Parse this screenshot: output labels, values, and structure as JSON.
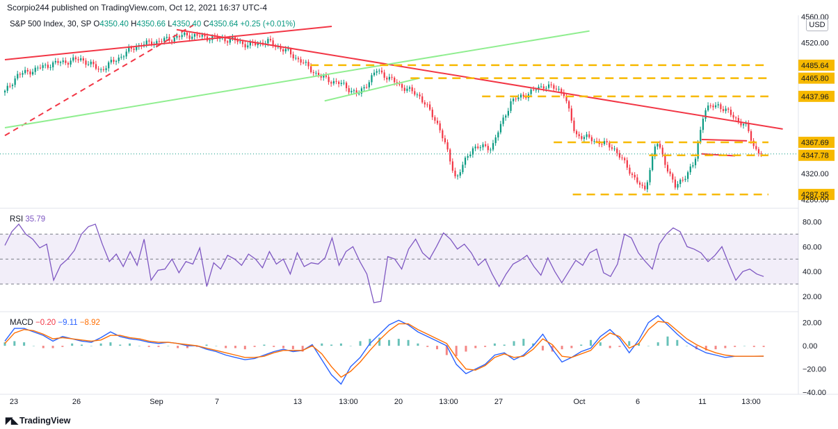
{
  "header": {
    "published": "Scorpio244 published on TradingView.com, Oct 12, 2021 16:37 UTC-4",
    "symbol": "S&P 500 Index, 30, SP",
    "open_label": "O",
    "open": "4350.40",
    "high_label": "H",
    "high": "4350.66",
    "low_label": "L",
    "low": "4350.40",
    "close_label": "C",
    "close": "4350.64",
    "change": "+0.25 (+0.01%)"
  },
  "currency_button": "USD",
  "logo_text": "TradingView",
  "colors": {
    "up": "#089981",
    "down": "#f23645",
    "trend": "#f23645",
    "channel": "#90ee90",
    "level": "#f7b900",
    "rsi": "#7e57c2",
    "macd": "#2962ff",
    "signal": "#ff6d00"
  },
  "chart_data": [
    {
      "type": "candlestick",
      "panel": "price",
      "ylim": [
        4270,
        4562
      ],
      "y_ticks": [
        "4520.00",
        "4320.00"
      ],
      "partial_ticks": [
        "4560.00",
        "4280.00"
      ],
      "last_price_label": "4347.78",
      "x_ticks": [
        "23",
        "26",
        "Sep",
        "7",
        "13",
        "13:00",
        "20",
        "13:00",
        "27",
        "Oct",
        "6",
        "11",
        "13:00"
      ],
      "ohlc": [],
      "horizontal_levels": [
        {
          "value": 4485.64,
          "label": "4485.64",
          "from": 12.8,
          "to": 32
        },
        {
          "value": 4465.8,
          "label": "4465.80",
          "from": 17,
          "to": 32
        },
        {
          "value": 4437.96,
          "label": "4437.96",
          "from": 20,
          "to": 32
        },
        {
          "value": 4367.69,
          "label": "4367.69",
          "from": 23,
          "to": 32
        },
        {
          "value": 4347.78,
          "label": "4347.78",
          "from": 27,
          "to": 32
        },
        {
          "value": 4287.95,
          "label": "4287.95",
          "from": 23.8,
          "to": 32
        }
      ],
      "trendlines": [
        {
          "style": "solid",
          "color": "trend",
          "points": [
            [
              0,
              4494
            ],
            [
              13.7,
              4545
            ]
          ]
        },
        {
          "style": "solid",
          "color": "trend",
          "points": [
            [
              7.2,
              4540
            ],
            [
              32.6,
              4388
            ]
          ]
        },
        {
          "style": "dashed",
          "color": "trend",
          "points": [
            [
              0,
              4378
            ],
            [
              7.9,
              4547
            ]
          ]
        },
        {
          "style": "solid",
          "color": "channel",
          "points": [
            [
              0,
              4390
            ],
            [
              24.5,
              4538
            ]
          ]
        },
        {
          "style": "solid",
          "color": "channel",
          "points": [
            [
              13.4,
              4431
            ],
            [
              17.4,
              4466
            ]
          ]
        },
        {
          "style": "solid",
          "color": "trend",
          "points": [
            [
              29.2,
              4372
            ],
            [
              31.1,
              4370
            ]
          ]
        },
        {
          "style": "solid",
          "color": "trend",
          "points": [
            [
              29.2,
              4350
            ],
            [
              30.6,
              4347
            ]
          ]
        }
      ]
    },
    {
      "type": "line",
      "panel": "rsi",
      "title": "RSI",
      "last_value": "35.79",
      "ylim": [
        10,
        88
      ],
      "y_ticks": [
        "80.00",
        "60.00",
        "40.00",
        "20.00"
      ],
      "band": [
        30,
        70
      ],
      "midline": 50,
      "series": [
        {
          "name": "RSI",
          "color": "rsi",
          "values": [
            61,
            72,
            78,
            70,
            66,
            59,
            62,
            33,
            45,
            50,
            57,
            70,
            76,
            78,
            62,
            48,
            54,
            44,
            56,
            45,
            66,
            33,
            41,
            42,
            50,
            39,
            48,
            46,
            59,
            28,
            47,
            42,
            53,
            50,
            45,
            54,
            50,
            43,
            56,
            46,
            50,
            38,
            55,
            44,
            47,
            46,
            51,
            67,
            45,
            56,
            60,
            48,
            38,
            15,
            16,
            52,
            50,
            42,
            58,
            66,
            55,
            50,
            60,
            71,
            66,
            58,
            62,
            55,
            45,
            50,
            38,
            28,
            38,
            46,
            49,
            53,
            44,
            37,
            51,
            40,
            31,
            40,
            49,
            45,
            55,
            58,
            39,
            36,
            46,
            70,
            67,
            55,
            48,
            42,
            62,
            70,
            75,
            72,
            60,
            58,
            55,
            48,
            53,
            60,
            46,
            33,
            40,
            42,
            38,
            36
          ]
        }
      ]
    },
    {
      "type": "line",
      "panel": "macd",
      "title": "MACD",
      "values_text": [
        "−0.20",
        "−9.11",
        "−8.92"
      ],
      "ylim": [
        -40,
        27
      ],
      "y_ticks": [
        "20.00",
        "0.00",
        "−20.00",
        "−40.00"
      ],
      "series": [
        {
          "name": "histogram",
          "color": "up",
          "values": [
            3,
            4,
            3,
            0,
            -2,
            -2,
            -1,
            2,
            1,
            0,
            2,
            3,
            1,
            2,
            0,
            -1,
            -1,
            0,
            -2,
            -2,
            -1,
            1,
            0,
            -2,
            -2,
            -3,
            -1,
            1,
            -1,
            -2,
            -3,
            -5,
            -1,
            2,
            1,
            2,
            0,
            4,
            6,
            7,
            5,
            6,
            5,
            2,
            -1,
            -3,
            -8,
            -9,
            -5,
            -2,
            -1,
            2,
            1,
            4,
            6,
            2,
            -4,
            -5,
            -3,
            -2,
            1,
            5,
            3,
            -2,
            -1,
            4,
            2,
            0,
            3,
            8,
            5,
            0,
            -3,
            -4,
            -3,
            -2,
            -1,
            0,
            -1,
            -1
          ]
        },
        {
          "name": "MACD",
          "color": "macd",
          "values": [
            4,
            15,
            15,
            12,
            9,
            4,
            8,
            6,
            4,
            3,
            7,
            12,
            8,
            6,
            5,
            3,
            2,
            3,
            2,
            0,
            0,
            -3,
            -5,
            -8,
            -10,
            -12,
            -11,
            -8,
            -5,
            -3,
            -5,
            -4,
            1,
            -12,
            -25,
            -33,
            -18,
            -10,
            2,
            10,
            18,
            22,
            18,
            12,
            8,
            4,
            0,
            -16,
            -24,
            -20,
            -16,
            -8,
            -6,
            -12,
            -8,
            0,
            10,
            -3,
            -14,
            -10,
            -5,
            -2,
            8,
            14,
            6,
            -6,
            5,
            20,
            26,
            18,
            10,
            3,
            -2,
            -6,
            -8,
            -10,
            -9,
            -9,
            -9,
            -9
          ]
        },
        {
          "name": "signal",
          "color": "signal",
          "values": [
            2,
            11,
            14,
            13,
            10,
            6,
            7,
            6,
            5,
            4,
            5,
            9,
            9,
            7,
            6,
            4,
            3,
            3,
            2,
            1,
            0,
            -2,
            -4,
            -6,
            -8,
            -10,
            -10,
            -9,
            -6,
            -4,
            -4,
            -4,
            0,
            -7,
            -18,
            -27,
            -22,
            -14,
            -4,
            5,
            13,
            19,
            19,
            14,
            10,
            6,
            2,
            -10,
            -20,
            -21,
            -17,
            -10,
            -7,
            -10,
            -9,
            -3,
            6,
            1,
            -9,
            -10,
            -7,
            -4,
            5,
            11,
            8,
            -2,
            2,
            14,
            21,
            20,
            13,
            6,
            1,
            -3,
            -6,
            -8,
            -9,
            -9,
            -9,
            -8.92
          ]
        }
      ]
    }
  ]
}
